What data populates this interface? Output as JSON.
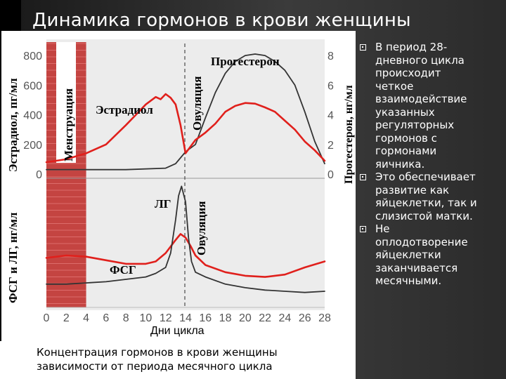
{
  "slide": {
    "title": "Динамика гормонов в крови женщины",
    "caption_lines": [
      "Концентрация гормонов в крови женщины",
      "зависимости от периода месячного цикла"
    ],
    "bullets": [
      {
        "lines": [
          "В период 28-",
          "дневного цикла",
          "происходит",
          "четкое",
          "взаимодействие",
          "указанных",
          "регуляторных",
          "гормонов с",
          "гормонами",
          "яичника."
        ]
      },
      {
        "lines": [
          "Это обеспечивает",
          "развитие как",
          "яйцеклетки, так и",
          "слизистой матки."
        ]
      },
      {
        "lines": [
          "Не",
          "оплодотворение",
          "яйцеклетки",
          "заканчивается",
          "месячными."
        ]
      }
    ]
  },
  "chart_data": {
    "type": "line",
    "xlabel": "Дни цикла",
    "x_ticks": [
      0,
      2,
      4,
      6,
      8,
      10,
      12,
      14,
      16,
      18,
      20,
      22,
      24,
      26,
      28
    ],
    "xlim": [
      0,
      28
    ],
    "shaded_period": {
      "label": "Менструация",
      "from": 0,
      "to": 4
    },
    "ovulation_day": 14,
    "ovulation_label": "Овуляция",
    "colors": {
      "red": "#e0201c",
      "dark": "#333333",
      "shade": "#c0322f"
    },
    "panels": [
      {
        "left_ylabel": "Эстрадиол, пг/мл",
        "left_ylim": [
          0,
          900
        ],
        "left_ticks": [
          0,
          200,
          400,
          600,
          800
        ],
        "right_ylabel": "Прогестерон, нг/мл",
        "right_ylim": [
          0,
          9
        ],
        "right_ticks": [
          0,
          2,
          4,
          6,
          8
        ],
        "series": [
          {
            "name": "Эстрадиол",
            "color": "red",
            "axis": "left",
            "x": [
              0,
              2,
              4,
              6,
              8,
              9,
              10,
              11,
              11.5,
              12,
              12.5,
              13,
              13.5,
              14,
              15,
              16,
              17,
              18,
              19,
              20,
              21,
              22,
              23,
              24,
              25,
              26,
              27,
              28
            ],
            "y": [
              80,
              100,
              140,
              200,
              330,
              400,
              470,
              520,
              505,
              540,
              515,
              470,
              330,
              140,
              230,
              280,
              340,
              420,
              460,
              480,
              475,
              450,
              420,
              360,
              300,
              220,
              160,
              90
            ]
          },
          {
            "name": "Прогестерон",
            "color": "dark",
            "axis": "right",
            "x": [
              0,
              4,
              8,
              12,
              13,
              14,
              15,
              16,
              17,
              18,
              19,
              20,
              21,
              22,
              23,
              24,
              25,
              26,
              27,
              28
            ],
            "y": [
              0.3,
              0.3,
              0.3,
              0.4,
              0.7,
              1.5,
              2.0,
              3.8,
              5.5,
              6.8,
              7.6,
              8.0,
              8.1,
              8.0,
              7.6,
              7.0,
              6.0,
              4.2,
              2.2,
              0.7
            ]
          }
        ]
      },
      {
        "left_ylabel": "ФСГ и ЛГ, нг/мл",
        "series": [
          {
            "name": "ЛГ",
            "color": "dark",
            "x": [
              0,
              2,
              4,
              6,
              8,
              10,
              11,
              12,
              12.5,
              13,
              13.3,
              13.6,
              14,
              14.3,
              14.6,
              15,
              16,
              18,
              20,
              22,
              24,
              26,
              28
            ],
            "y": [
              1.6,
              1.6,
              1.7,
              1.8,
              2.0,
              2.2,
              2.5,
              3.0,
              4.2,
              7.0,
              9.0,
              9.8,
              8.5,
              5.5,
              3.5,
              2.6,
              2.2,
              1.6,
              1.3,
              1.1,
              1.0,
              0.9,
              1.0
            ]
          },
          {
            "name": "ФСГ",
            "color": "red",
            "x": [
              0,
              2,
              4,
              6,
              8,
              10,
              11,
              12,
              13,
              13.5,
              14,
              14.5,
              15,
              16,
              18,
              20,
              22,
              24,
              26,
              28
            ],
            "y": [
              3.8,
              4.0,
              3.9,
              3.6,
              3.3,
              3.3,
              3.5,
              4.2,
              5.3,
              5.8,
              5.5,
              4.8,
              4.0,
              3.2,
              2.6,
              2.3,
              2.2,
              2.4,
              3.0,
              3.5
            ]
          }
        ]
      }
    ]
  }
}
